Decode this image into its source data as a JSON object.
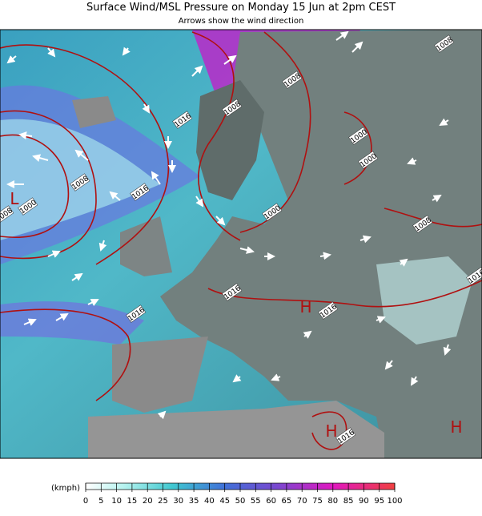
{
  "header": {
    "title": "Surface Wind/MSL Pressure on Monday 15 Jun at 2pm CEST",
    "subtitle": "Arrows show the wind direction"
  },
  "map": {
    "isobar_labels": [
      "1008",
      "1008",
      "1016",
      "1008",
      "1000",
      "1000",
      "1008",
      "1016",
      "1000",
      "1008",
      "1000",
      "1008",
      "1016",
      "1016",
      "1016",
      "1016",
      "1016"
    ],
    "pressure_centers": [
      "L",
      "H",
      "H",
      "H"
    ]
  },
  "legend": {
    "unit": "(kmph)",
    "lim": [
      0,
      100
    ],
    "ticks": [
      0,
      5,
      10,
      15,
      20,
      25,
      30,
      35,
      40,
      45,
      50,
      55,
      60,
      65,
      70,
      75,
      80,
      85,
      90,
      95,
      100
    ]
  }
}
